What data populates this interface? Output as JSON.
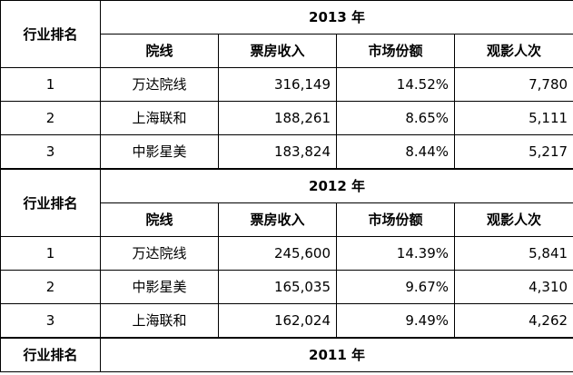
{
  "rank_header": "行业排名",
  "columns": [
    "院线",
    "票房收入",
    "市场份额",
    "观影人次"
  ],
  "sections": [
    {
      "year": "2013 年",
      "rows": [
        {
          "rank": "1",
          "name": "万达院线",
          "box": "316,149",
          "share": "14.52%",
          "viewers": "7,780"
        },
        {
          "rank": "2",
          "name": "上海联和",
          "box": "188,261",
          "share": "8.65%",
          "viewers": "5,111"
        },
        {
          "rank": "3",
          "name": "中影星美",
          "box": "183,824",
          "share": "8.44%",
          "viewers": "5,217"
        }
      ]
    },
    {
      "year": "2012 年",
      "rows": [
        {
          "rank": "1",
          "name": "万达院线",
          "box": "245,600",
          "share": "14.39%",
          "viewers": "5,841"
        },
        {
          "rank": "2",
          "name": "中影星美",
          "box": "165,035",
          "share": "9.67%",
          "viewers": "4,310"
        },
        {
          "rank": "3",
          "name": "上海联和",
          "box": "162,024",
          "share": "9.49%",
          "viewers": "4,262"
        }
      ]
    },
    {
      "year": "2011 年",
      "rows": []
    }
  ]
}
